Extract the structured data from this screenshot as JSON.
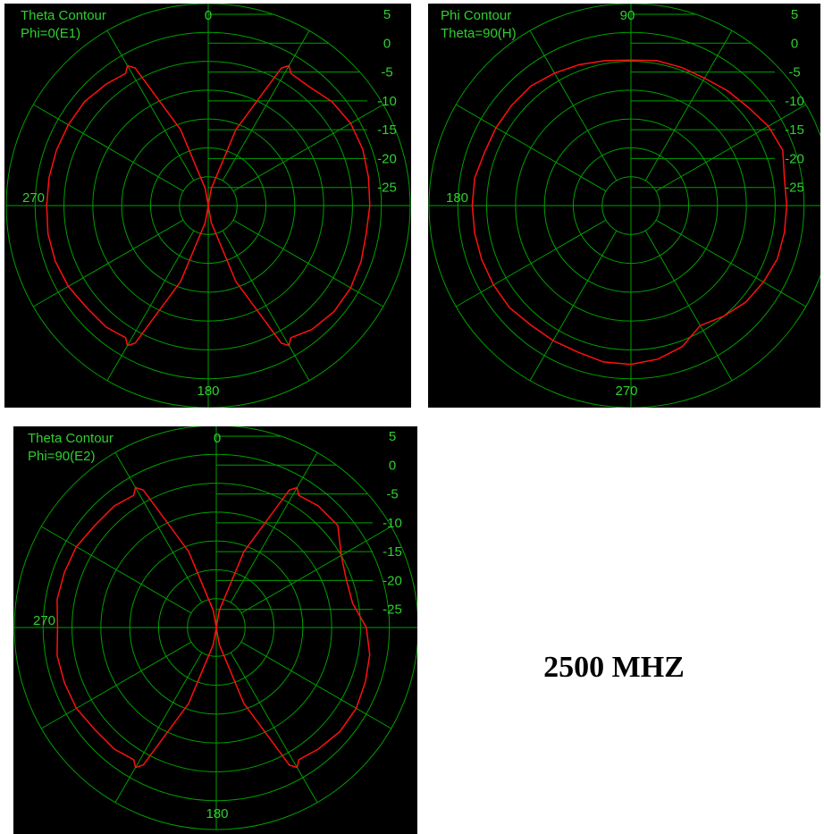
{
  "frequency_label": "2500 MHZ",
  "colors": {
    "background": "#000000",
    "grid": "#00a000",
    "text": "#2fd02f",
    "trace": "#ff1010"
  },
  "chart_data": [
    {
      "type": "polar",
      "title": "Theta Contour",
      "subtitle": "Phi=0(E1)",
      "angle_labels": [
        "0",
        "270",
        "180"
      ],
      "radial_unit": "dB",
      "radial_ticks": [
        "5",
        "0",
        "-5",
        "-10",
        "-15",
        "-20",
        "-25"
      ],
      "rlim": [
        -30,
        5
      ],
      "orientation": "0 at top, clockwise, 270 at left",
      "series": [
        {
          "angle_deg": [
            0,
            10,
            20,
            28,
            30,
            32,
            40,
            50,
            60,
            70,
            80,
            90,
            100,
            110,
            120,
            130,
            140,
            148,
            150,
            152,
            160,
            170,
            180,
            190,
            200,
            208,
            210,
            212,
            220,
            230,
            240,
            250,
            260,
            270,
            280,
            290,
            300,
            310,
            320,
            328,
            330,
            332,
            340,
            350,
            360
          ],
          "gain_db": [
            -30,
            -27,
            -16,
            -3,
            -2,
            -3,
            -3,
            -2,
            -1.5,
            -1.5,
            -1.8,
            -2,
            -2.2,
            -1.8,
            -1.5,
            -1.5,
            -2,
            -3,
            -2,
            -3,
            -16,
            -27,
            -30,
            -27,
            -16,
            -3,
            -2,
            -3,
            -2.5,
            -2.5,
            -2,
            -1.8,
            -1.8,
            -2,
            -2,
            -2,
            -2,
            -2,
            -2.5,
            -3,
            -2,
            -3,
            -16,
            -27,
            -30
          ]
        }
      ]
    },
    {
      "type": "polar",
      "title": "Phi Contour",
      "subtitle": "Theta=90(H)",
      "angle_labels": [
        "90",
        "180",
        "270"
      ],
      "radial_unit": "dB",
      "radial_ticks": [
        "5",
        "0",
        "-5",
        "-10",
        "-15",
        "-20",
        "-25"
      ],
      "rlim": [
        -30,
        5
      ],
      "orientation": "90 at top, counterclockwise, 180 at left",
      "series": [
        {
          "angle_deg": [
            0,
            10,
            20,
            30,
            40,
            50,
            60,
            70,
            80,
            90,
            100,
            110,
            120,
            130,
            140,
            150,
            160,
            170,
            180,
            190,
            200,
            210,
            220,
            230,
            240,
            250,
            260,
            270,
            280,
            290,
            300,
            310,
            320,
            330,
            340,
            350,
            360
          ],
          "gain_db": [
            -3,
            -3,
            -2,
            -2.5,
            -3.5,
            -4,
            -4.5,
            -4.5,
            -4.5,
            -4.8,
            -4.5,
            -4,
            -3.5,
            -3,
            -3,
            -3,
            -3,
            -2.5,
            -2.5,
            -2.5,
            -2.5,
            -2.5,
            -2.5,
            -3,
            -3,
            -3,
            -2.5,
            -2.5,
            -3,
            -4,
            -6,
            -5,
            -4,
            -3.5,
            -3,
            -3,
            -3
          ]
        }
      ]
    },
    {
      "type": "polar",
      "title": "Theta Contour",
      "subtitle": "Phi=90(E2)",
      "angle_labels": [
        "0",
        "270",
        "180"
      ],
      "radial_unit": "dB",
      "radial_ticks": [
        "5",
        "0",
        "-5",
        "-10",
        "-15",
        "-20",
        "-25"
      ],
      "rlim": [
        -30,
        5
      ],
      "orientation": "0 at top, clockwise, 270 at left",
      "series": [
        {
          "angle_deg": [
            0,
            10,
            20,
            28,
            30,
            32,
            40,
            50,
            60,
            70,
            80,
            90,
            100,
            110,
            120,
            130,
            140,
            148,
            150,
            152,
            160,
            170,
            180,
            190,
            200,
            208,
            210,
            212,
            220,
            230,
            240,
            250,
            260,
            270,
            280,
            290,
            300,
            310,
            320,
            328,
            330,
            332,
            340,
            350,
            360
          ],
          "gain_db": [
            -30,
            -27,
            -16,
            -3,
            -2,
            -3,
            -2.5,
            -2.5,
            -5,
            -6,
            -6,
            -4,
            -3,
            -2.5,
            -2,
            -2,
            -2.5,
            -3,
            -2,
            -3,
            -16,
            -27,
            -30,
            -27,
            -16,
            -3,
            -2,
            -3,
            -2.5,
            -2.5,
            -2,
            -2,
            -2,
            -2.5,
            -2,
            -2,
            -2,
            -2.5,
            -2.5,
            -3,
            -2,
            -3,
            -16,
            -27,
            -30
          ]
        }
      ]
    }
  ]
}
